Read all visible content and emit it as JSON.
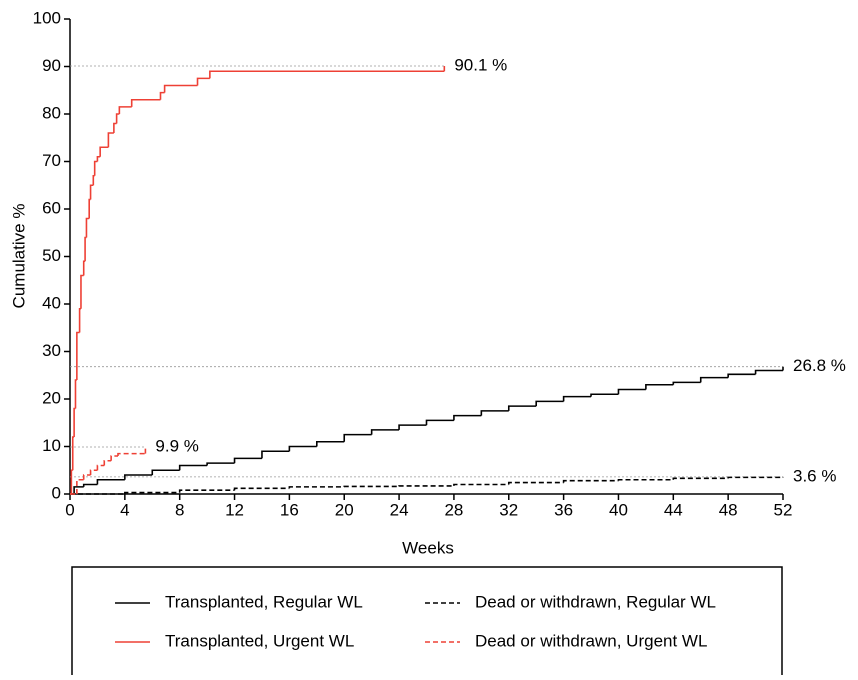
{
  "chart_data": {
    "type": "step",
    "xlabel": "Weeks",
    "ylabel": "Cumulative %",
    "xlim": [
      0,
      52
    ],
    "xticks": [
      0,
      4,
      8,
      12,
      16,
      20,
      24,
      28,
      32,
      36,
      40,
      44,
      48,
      52
    ],
    "ylim": [
      0,
      100
    ],
    "yticks": [
      0,
      10,
      20,
      30,
      40,
      50,
      60,
      70,
      80,
      90,
      100
    ],
    "series": [
      {
        "name": "Transplanted, Regular WL",
        "color": "#000000",
        "dashed": false,
        "end_label": "26.8 %",
        "x": [
          0,
          0.3,
          1,
          2,
          4,
          6,
          8,
          10,
          12,
          14,
          16,
          18,
          20,
          22,
          24,
          26,
          28,
          30,
          32,
          34,
          36,
          38,
          40,
          42,
          44,
          46,
          48,
          50,
          52
        ],
        "values": [
          0,
          1.5,
          2,
          3,
          4,
          5,
          6,
          6.5,
          7.5,
          9,
          10,
          11,
          12.5,
          13.5,
          14.5,
          15.5,
          16.5,
          17.5,
          18.5,
          19.5,
          20.5,
          21,
          22,
          23,
          23.5,
          24.5,
          25.2,
          26,
          26.8
        ]
      },
      {
        "name": "Dead or withdrawn, Regular WL",
        "color": "#000000",
        "dashed": true,
        "end_label": "3.6 %",
        "x": [
          0,
          4,
          8,
          12,
          16,
          20,
          24,
          28,
          32,
          36,
          40,
          44,
          48,
          52
        ],
        "values": [
          0,
          0.3,
          0.8,
          1.2,
          1.5,
          1.6,
          1.7,
          2,
          2.4,
          2.8,
          3,
          3.3,
          3.5,
          3.6
        ]
      },
      {
        "name": "Transplanted, Urgent WL",
        "color": "#ee4035",
        "dashed": false,
        "end_label": "90.1 %",
        "x": [
          0,
          0.1,
          0.2,
          0.3,
          0.4,
          0.5,
          0.7,
          0.8,
          1.0,
          1.1,
          1.2,
          1.4,
          1.5,
          1.7,
          1.8,
          2.0,
          2.2,
          2.8,
          3.2,
          3.4,
          3.6,
          4.5,
          6.6,
          6.9,
          9.3,
          10.2,
          27.3
        ],
        "values": [
          0,
          5,
          12,
          18,
          24,
          34,
          39,
          46,
          49,
          54,
          58,
          62,
          65,
          67,
          70,
          71,
          73,
          76,
          78,
          80,
          81.5,
          83,
          84.5,
          86,
          87.5,
          89,
          90.1
        ]
      },
      {
        "name": "Dead or withdrawn, Urgent WL",
        "color": "#ee4035",
        "dashed": true,
        "end_label": "9.9 %",
        "x": [
          0,
          0.5,
          1,
          1.5,
          2,
          2.5,
          3,
          3.5,
          5.5
        ],
        "values": [
          0,
          3,
          4,
          5,
          6,
          7,
          8,
          8.5,
          9.9
        ]
      }
    ]
  }
}
